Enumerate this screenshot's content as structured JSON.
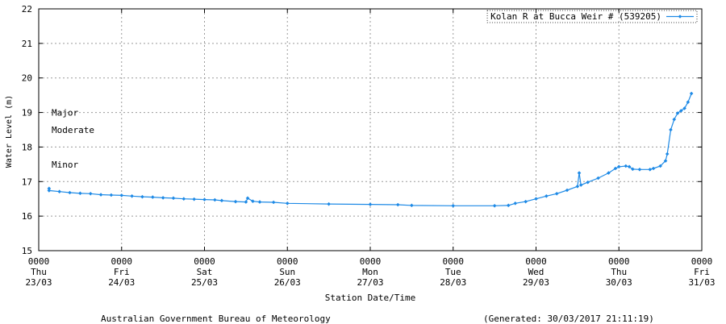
{
  "chart_data": {
    "type": "line",
    "ylabel": "Water Level (m)",
    "xlabel": "Station Date/Time",
    "ylim": [
      15,
      22
    ],
    "yticks": [
      "15",
      "16",
      "17",
      "18",
      "19",
      "20",
      "21",
      "22"
    ],
    "xlim": [
      "2017-03-23 00:00",
      "2017-03-31 00:00"
    ],
    "xticks": [
      {
        "time": "0000",
        "day": "Thu",
        "date": "23/03"
      },
      {
        "time": "0000",
        "day": "Fri",
        "date": "24/03"
      },
      {
        "time": "0000",
        "day": "Sat",
        "date": "25/03"
      },
      {
        "time": "0000",
        "day": "Sun",
        "date": "26/03"
      },
      {
        "time": "0000",
        "day": "Mon",
        "date": "27/03"
      },
      {
        "time": "0000",
        "day": "Tue",
        "date": "28/03"
      },
      {
        "time": "0000",
        "day": "Wed",
        "date": "29/03"
      },
      {
        "time": "0000",
        "day": "Thu",
        "date": "30/03"
      },
      {
        "time": "0000",
        "day": "Fri",
        "date": "31/03"
      }
    ],
    "grid": true,
    "legend_position": "top-right",
    "flood_levels": [
      {
        "label": "Major",
        "value": 19.0
      },
      {
        "label": "Moderate",
        "value": 18.5
      },
      {
        "label": "Minor",
        "value": 17.5
      }
    ],
    "series": [
      {
        "name": "Kolan R at Bucca Weir # (539205)",
        "color": "#1e8ae6",
        "points": [
          [
            "2017-03-23 03:00",
            16.8
          ],
          [
            "2017-03-23 03:00",
            16.74
          ],
          [
            "2017-03-23 06:00",
            16.71
          ],
          [
            "2017-03-23 09:00",
            16.68
          ],
          [
            "2017-03-23 12:00",
            16.66
          ],
          [
            "2017-03-23 15:00",
            16.65
          ],
          [
            "2017-03-23 18:00",
            16.62
          ],
          [
            "2017-03-23 21:00",
            16.61
          ],
          [
            "2017-03-24 00:00",
            16.6
          ],
          [
            "2017-03-24 03:00",
            16.58
          ],
          [
            "2017-03-24 06:00",
            16.56
          ],
          [
            "2017-03-24 09:00",
            16.55
          ],
          [
            "2017-03-24 12:00",
            16.53
          ],
          [
            "2017-03-24 15:00",
            16.52
          ],
          [
            "2017-03-24 18:00",
            16.5
          ],
          [
            "2017-03-24 21:00",
            16.49
          ],
          [
            "2017-03-25 00:00",
            16.48
          ],
          [
            "2017-03-25 03:00",
            16.47
          ],
          [
            "2017-03-25 05:00",
            16.45
          ],
          [
            "2017-03-25 09:00",
            16.42
          ],
          [
            "2017-03-25 12:00",
            16.41
          ],
          [
            "2017-03-25 12:30",
            16.52
          ],
          [
            "2017-03-25 14:00",
            16.43
          ],
          [
            "2017-03-25 16:00",
            16.41
          ],
          [
            "2017-03-25 20:00",
            16.4
          ],
          [
            "2017-03-26 00:00",
            16.37
          ],
          [
            "2017-03-26 12:00",
            16.35
          ],
          [
            "2017-03-27 00:00",
            16.34
          ],
          [
            "2017-03-27 08:00",
            16.33
          ],
          [
            "2017-03-27 12:00",
            16.31
          ],
          [
            "2017-03-28 00:00",
            16.3
          ],
          [
            "2017-03-28 12:00",
            16.3
          ],
          [
            "2017-03-28 16:00",
            16.31
          ],
          [
            "2017-03-28 18:00",
            16.37
          ],
          [
            "2017-03-28 21:00",
            16.42
          ],
          [
            "2017-03-29 00:00",
            16.5
          ],
          [
            "2017-03-29 03:00",
            16.58
          ],
          [
            "2017-03-29 06:00",
            16.65
          ],
          [
            "2017-03-29 09:00",
            16.75
          ],
          [
            "2017-03-29 12:00",
            16.86
          ],
          [
            "2017-03-29 12:30",
            17.25
          ],
          [
            "2017-03-29 13:00",
            16.9
          ],
          [
            "2017-03-29 15:00",
            16.98
          ],
          [
            "2017-03-29 18:00",
            17.1
          ],
          [
            "2017-03-29 21:00",
            17.25
          ],
          [
            "2017-03-29 23:00",
            17.38
          ],
          [
            "2017-03-30 00:00",
            17.43
          ],
          [
            "2017-03-30 02:00",
            17.45
          ],
          [
            "2017-03-30 03:00",
            17.43
          ],
          [
            "2017-03-30 04:00",
            17.36
          ],
          [
            "2017-03-30 06:00",
            17.35
          ],
          [
            "2017-03-30 09:00",
            17.35
          ],
          [
            "2017-03-30 10:00",
            17.38
          ],
          [
            "2017-03-30 12:00",
            17.45
          ],
          [
            "2017-03-30 13:30",
            17.6
          ],
          [
            "2017-03-30 14:00",
            17.8
          ],
          [
            "2017-03-30 15:00",
            18.5
          ],
          [
            "2017-03-30 16:00",
            18.8
          ],
          [
            "2017-03-30 17:00",
            18.98
          ],
          [
            "2017-03-30 18:00",
            19.05
          ],
          [
            "2017-03-30 19:00",
            19.12
          ],
          [
            "2017-03-30 20:00",
            19.3
          ],
          [
            "2017-03-30 21:00",
            19.55
          ]
        ]
      }
    ]
  },
  "footer": {
    "source": "Australian Government Bureau of Meteorology",
    "generated": "(Generated: 30/03/2017 21:11:19)"
  }
}
